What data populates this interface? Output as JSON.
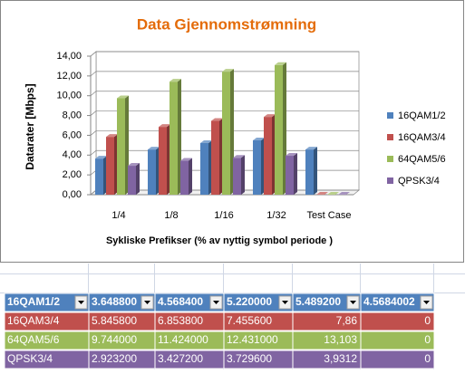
{
  "chart_data": {
    "type": "bar3d",
    "title": "Data Gjennomstrømning",
    "y_label": "Datarater [Mbps]",
    "x_label": "Sykliske Prefikser (% av nyttig symbol periode )",
    "categories": [
      "1/4",
      "1/8",
      "1/16",
      "1/32",
      "Test Case"
    ],
    "series": [
      {
        "name": "16QAM1/2",
        "color": "#4f81bd",
        "values": [
          3.6488,
          4.5684,
          5.22,
          5.4892,
          4.5684002
        ]
      },
      {
        "name": "16QAM3/4",
        "color": "#c0504d",
        "values": [
          5.8458,
          6.8538,
          7.4556,
          7.86,
          0
        ]
      },
      {
        "name": "64QAM5/6",
        "color": "#9bbb59",
        "values": [
          9.744,
          11.424,
          12.431,
          13.103,
          0
        ]
      },
      {
        "name": "QPSK3/4",
        "color": "#8064a2",
        "values": [
          2.9232,
          3.4272,
          3.7296,
          3.9312,
          0
        ]
      }
    ],
    "ylim": [
      0,
      14
    ],
    "yticks": [
      {
        "value": 0,
        "label": "0,00"
      },
      {
        "value": 2,
        "label": "2,00"
      },
      {
        "value": 4,
        "label": "4,00"
      },
      {
        "value": 6,
        "label": "6,00"
      },
      {
        "value": 8,
        "label": "8,00"
      },
      {
        "value": 10,
        "label": "10,00"
      },
      {
        "value": 12,
        "label": "12,00"
      },
      {
        "value": 14,
        "label": "14,00"
      }
    ],
    "grid": true,
    "legend": "right"
  },
  "table": {
    "rows": [
      [
        "16QAM1/2",
        "3.648800",
        "4.568400",
        "5.220000",
        "5.489200",
        "4.5684002"
      ],
      [
        "16QAM3/4",
        "5.845800",
        "6.853800",
        "7.455600",
        "7,86",
        "0"
      ],
      [
        "64QAM5/6",
        "9.744000",
        "11.424000",
        "12.431000",
        "13,103",
        "0"
      ],
      [
        "QPSK3/4",
        "2.923200",
        "3.427200",
        "3.729600",
        "3,9312",
        "0"
      ]
    ]
  }
}
